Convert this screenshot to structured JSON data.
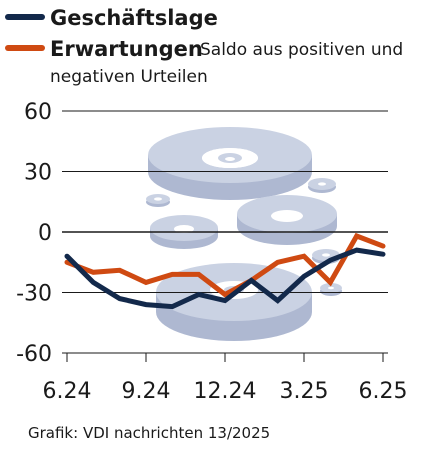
{
  "chart_data": {
    "type": "line",
    "x": [
      "6.24",
      "7.24",
      "8.24",
      "9.24",
      "10.24",
      "11.24",
      "12.24",
      "1.25",
      "2.25",
      "3.25",
      "4.25",
      "5.25",
      "6.25"
    ],
    "xticks": [
      "6.24",
      "9.24",
      "12.24",
      "3.25",
      "6.25"
    ],
    "yticks": [
      "60",
      "30",
      "0",
      "-30",
      "-60"
    ],
    "ylim": [
      -60,
      60
    ],
    "series": [
      {
        "name": "Geschäftslage",
        "color": "#13294b",
        "values": [
          -12,
          -25,
          -33,
          -36,
          -37,
          -31,
          -34,
          -24,
          -34,
          -22,
          -14,
          -9,
          -11
        ]
      },
      {
        "name": "Erwartungen",
        "color": "#cf4a12",
        "values": [
          -15,
          -20,
          -19,
          -25,
          -21,
          -21,
          -31,
          -24,
          -15,
          -12,
          -25,
          -2,
          -7
        ]
      }
    ],
    "legend_note_line1": "Saldo aus positiven und",
    "legend_note_line2": "negativen Urteilen",
    "source": "Grafik: VDI nachrichten 13/2025"
  },
  "colors": {
    "background": "#ffffff",
    "grid": "#1a1a1a",
    "decor_disc": "#c5cde0"
  }
}
